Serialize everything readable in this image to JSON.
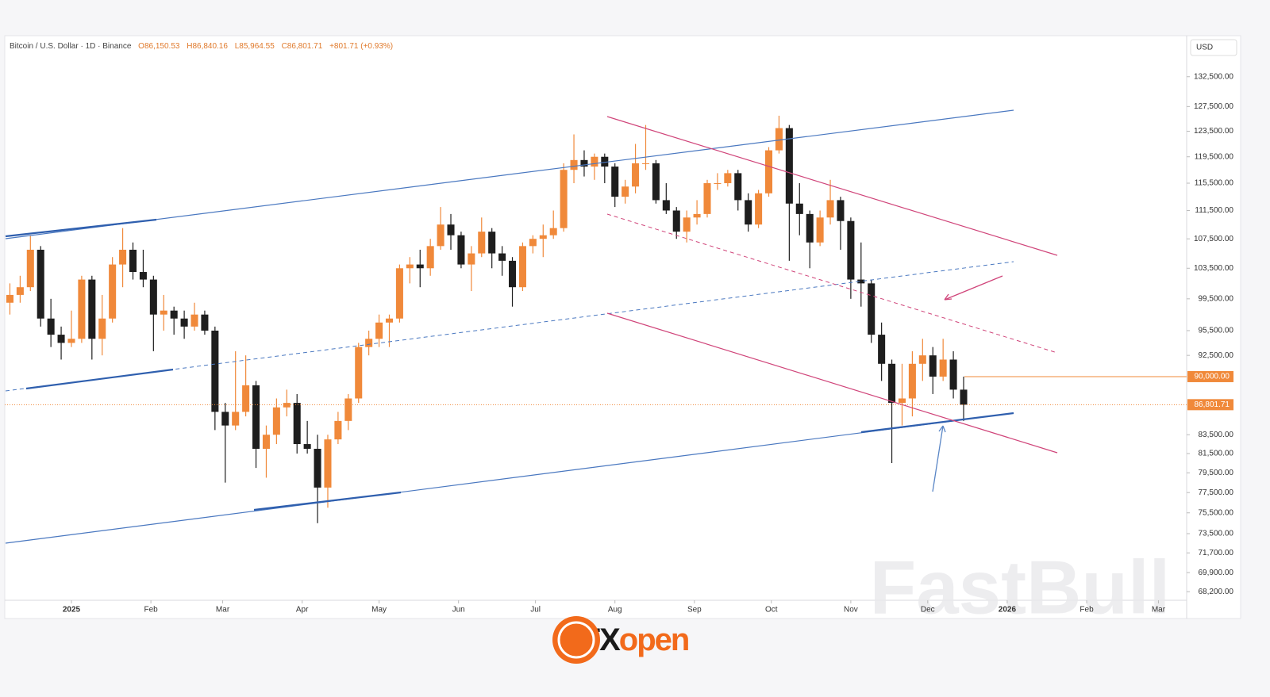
{
  "chart_data": {
    "type": "candlestick",
    "header": {
      "symbol": "Bitcoin / U.S. Dollar · 1D · Binance",
      "open": "O86,150.53",
      "high": "H86,840.16",
      "low": "L85,964.55",
      "close": "C86,801.71",
      "change": "+801.71 (+0.93%)"
    },
    "currency": "USD",
    "log_scale": true,
    "up_color": "#f0893a",
    "down_color": "#1e1e1e",
    "xlim": [
      -26,
      435
    ],
    "xticks": [
      {
        "value": 0,
        "label": "2025"
      },
      {
        "value": 31,
        "label": "Feb"
      },
      {
        "value": 59,
        "label": "Mar"
      },
      {
        "value": 90,
        "label": "Apr"
      },
      {
        "value": 120,
        "label": "May"
      },
      {
        "value": 151,
        "label": "Jun"
      },
      {
        "value": 181,
        "label": "Jul"
      },
      {
        "value": 212,
        "label": "Aug"
      },
      {
        "value": 243,
        "label": "Sep"
      },
      {
        "value": 273,
        "label": "Oct"
      },
      {
        "value": 304,
        "label": "Nov"
      },
      {
        "value": 334,
        "label": "Dec"
      },
      {
        "value": 365,
        "label": "2026"
      },
      {
        "value": 396,
        "label": "Feb"
      },
      {
        "value": 424,
        "label": "Mar"
      }
    ],
    "ylim": [
      67450,
      139700
    ],
    "yticks": [
      {
        "value": 132500,
        "label": "132,500.00"
      },
      {
        "value": 127500,
        "label": "127,500.00"
      },
      {
        "value": 123500,
        "label": "123,500.00"
      },
      {
        "value": 119500,
        "label": "119,500.00"
      },
      {
        "value": 115500,
        "label": "115,500.00"
      },
      {
        "value": 111500,
        "label": "111,500.00"
      },
      {
        "value": 107500,
        "label": "107,500.00"
      },
      {
        "value": 103500,
        "label": "103,500.00"
      },
      {
        "value": 99500,
        "label": "99,500.00"
      },
      {
        "value": 95500,
        "label": "95,500.00"
      },
      {
        "value": 92500,
        "label": "92,500.00"
      },
      {
        "value": 83500,
        "label": "83,500.00"
      },
      {
        "value": 81500,
        "label": "81,500.00"
      },
      {
        "value": 79500,
        "label": "79,500.00"
      },
      {
        "value": 77500,
        "label": "77,500.00"
      },
      {
        "value": 75500,
        "label": "75,500.00"
      },
      {
        "value": 73500,
        "label": "73,500.00"
      },
      {
        "value": 71700,
        "label": "71,700.00"
      },
      {
        "value": 69900,
        "label": "69,900.00"
      },
      {
        "value": 68200,
        "label": "68,200.00"
      }
    ],
    "level_line": {
      "value": 90000,
      "label": "90,000.00",
      "color": "#f0893a"
    },
    "last_price": {
      "value": 86801.71,
      "label": "86,801.71",
      "color": "#f0893a"
    },
    "x": [
      -24,
      -20,
      -16,
      -12,
      -8,
      -4,
      0,
      4,
      8,
      12,
      16,
      20,
      24,
      28,
      32,
      36,
      40,
      44,
      48,
      52,
      56,
      60,
      64,
      68,
      72,
      76,
      80,
      84,
      88,
      92,
      96,
      100,
      104,
      108,
      112,
      116,
      120,
      124,
      128,
      132,
      136,
      140,
      144,
      148,
      152,
      156,
      160,
      164,
      168,
      172,
      176,
      180,
      184,
      188,
      192,
      196,
      200,
      204,
      208,
      212,
      216,
      220,
      224,
      228,
      232,
      236,
      240,
      244,
      248,
      252,
      256,
      260,
      264,
      268,
      272,
      276,
      280,
      284,
      288,
      292,
      296,
      300,
      304,
      308,
      312,
      316,
      320,
      324,
      328,
      332,
      336,
      340,
      344,
      348
    ],
    "open": [
      99000,
      100000,
      101000,
      106000,
      97000,
      95000,
      94000,
      94500,
      102000,
      94500,
      97000,
      104000,
      106000,
      103000,
      102000,
      97500,
      98000,
      97000,
      96000,
      97500,
      95500,
      86000,
      84500,
      86000,
      89000,
      82000,
      83500,
      86500,
      87000,
      82500,
      82000,
      78000,
      83000,
      85000,
      87500,
      93500,
      94500,
      96500,
      97000,
      103500,
      104000,
      103500,
      106500,
      109500,
      108000,
      104000,
      105500,
      108500,
      105500,
      104500,
      101000,
      106500,
      107500,
      108000,
      109000,
      117500,
      119000,
      118000,
      119500,
      118000,
      113500,
      115000,
      118500,
      118500,
      113000,
      111500,
      108500,
      110500,
      111000,
      115500,
      115500,
      117000,
      113000,
      109500,
      114000,
      120500,
      124000,
      112500,
      111000,
      107000,
      110500,
      113000,
      110000,
      102000,
      101500,
      95000,
      91500,
      87000,
      87500,
      91500,
      92500,
      90000,
      92000,
      88500
    ],
    "high": [
      101500,
      102500,
      108000,
      106500,
      99500,
      96000,
      98000,
      102500,
      102500,
      100000,
      105000,
      109000,
      107000,
      106000,
      102500,
      100000,
      98500,
      98000,
      99000,
      98000,
      96000,
      87000,
      93000,
      92500,
      89500,
      84500,
      87500,
      88500,
      88000,
      85000,
      83500,
      83500,
      86000,
      88000,
      94000,
      95500,
      97500,
      97500,
      104000,
      105000,
      106000,
      107500,
      112000,
      111000,
      108500,
      106500,
      110500,
      109000,
      106500,
      105000,
      107000,
      108000,
      109500,
      111500,
      118500,
      123000,
      120500,
      120000,
      120000,
      118500,
      116000,
      121500,
      124500,
      119000,
      115500,
      112000,
      111500,
      113000,
      116000,
      117000,
      117500,
      117500,
      114000,
      114500,
      121000,
      126000,
      124500,
      115500,
      111500,
      111500,
      116000,
      113500,
      110500,
      107000,
      102000,
      96500,
      92000,
      91500,
      93000,
      94500,
      93500,
      94500,
      93000,
      90000
    ],
    "low": [
      97500,
      99000,
      100500,
      96000,
      93500,
      92000,
      93500,
      94000,
      92000,
      92500,
      96500,
      101000,
      102000,
      101000,
      93000,
      95500,
      95000,
      94500,
      95500,
      95000,
      84000,
      78500,
      84000,
      85500,
      80000,
      79000,
      82500,
      85500,
      81500,
      81500,
      74500,
      76000,
      82500,
      84000,
      87000,
      92500,
      93500,
      93500,
      96500,
      101500,
      101000,
      102500,
      106000,
      106000,
      103500,
      100500,
      105000,
      103500,
      102500,
      98500,
      100500,
      105500,
      105000,
      107500,
      108500,
      115500,
      116500,
      116000,
      115500,
      112000,
      112500,
      114000,
      117500,
      112500,
      111000,
      107500,
      107000,
      109500,
      110500,
      114500,
      115000,
      111500,
      108500,
      109000,
      113500,
      120000,
      104500,
      108000,
      103500,
      106500,
      109500,
      106000,
      99500,
      98500,
      94000,
      89500,
      80500,
      84500,
      85500,
      89500,
      88000,
      89500,
      87500,
      85000
    ],
    "close": [
      100000,
      101000,
      106000,
      97000,
      95000,
      94000,
      94500,
      102000,
      94500,
      97000,
      104000,
      106000,
      103000,
      102000,
      97500,
      98000,
      97000,
      96000,
      97500,
      95500,
      86000,
      84500,
      86000,
      89000,
      82000,
      83500,
      86500,
      87000,
      82500,
      82000,
      78000,
      83000,
      85000,
      87500,
      93500,
      94500,
      96500,
      97000,
      103500,
      104000,
      103500,
      106500,
      109500,
      108000,
      104000,
      105500,
      108500,
      105500,
      104500,
      101000,
      106500,
      107500,
      108000,
      109000,
      117500,
      119000,
      118000,
      119500,
      118000,
      113500,
      115000,
      118500,
      118500,
      113000,
      111500,
      108500,
      110500,
      111000,
      115500,
      115500,
      117000,
      113000,
      109500,
      114000,
      120500,
      124000,
      112500,
      111000,
      107000,
      110500,
      113000,
      110000,
      102000,
      101500,
      95000,
      91500,
      87000,
      87500,
      91500,
      92500,
      90000,
      92000,
      88500,
      86800
    ],
    "watermark": "FastBull",
    "logo": [
      "FX",
      "open"
    ]
  }
}
